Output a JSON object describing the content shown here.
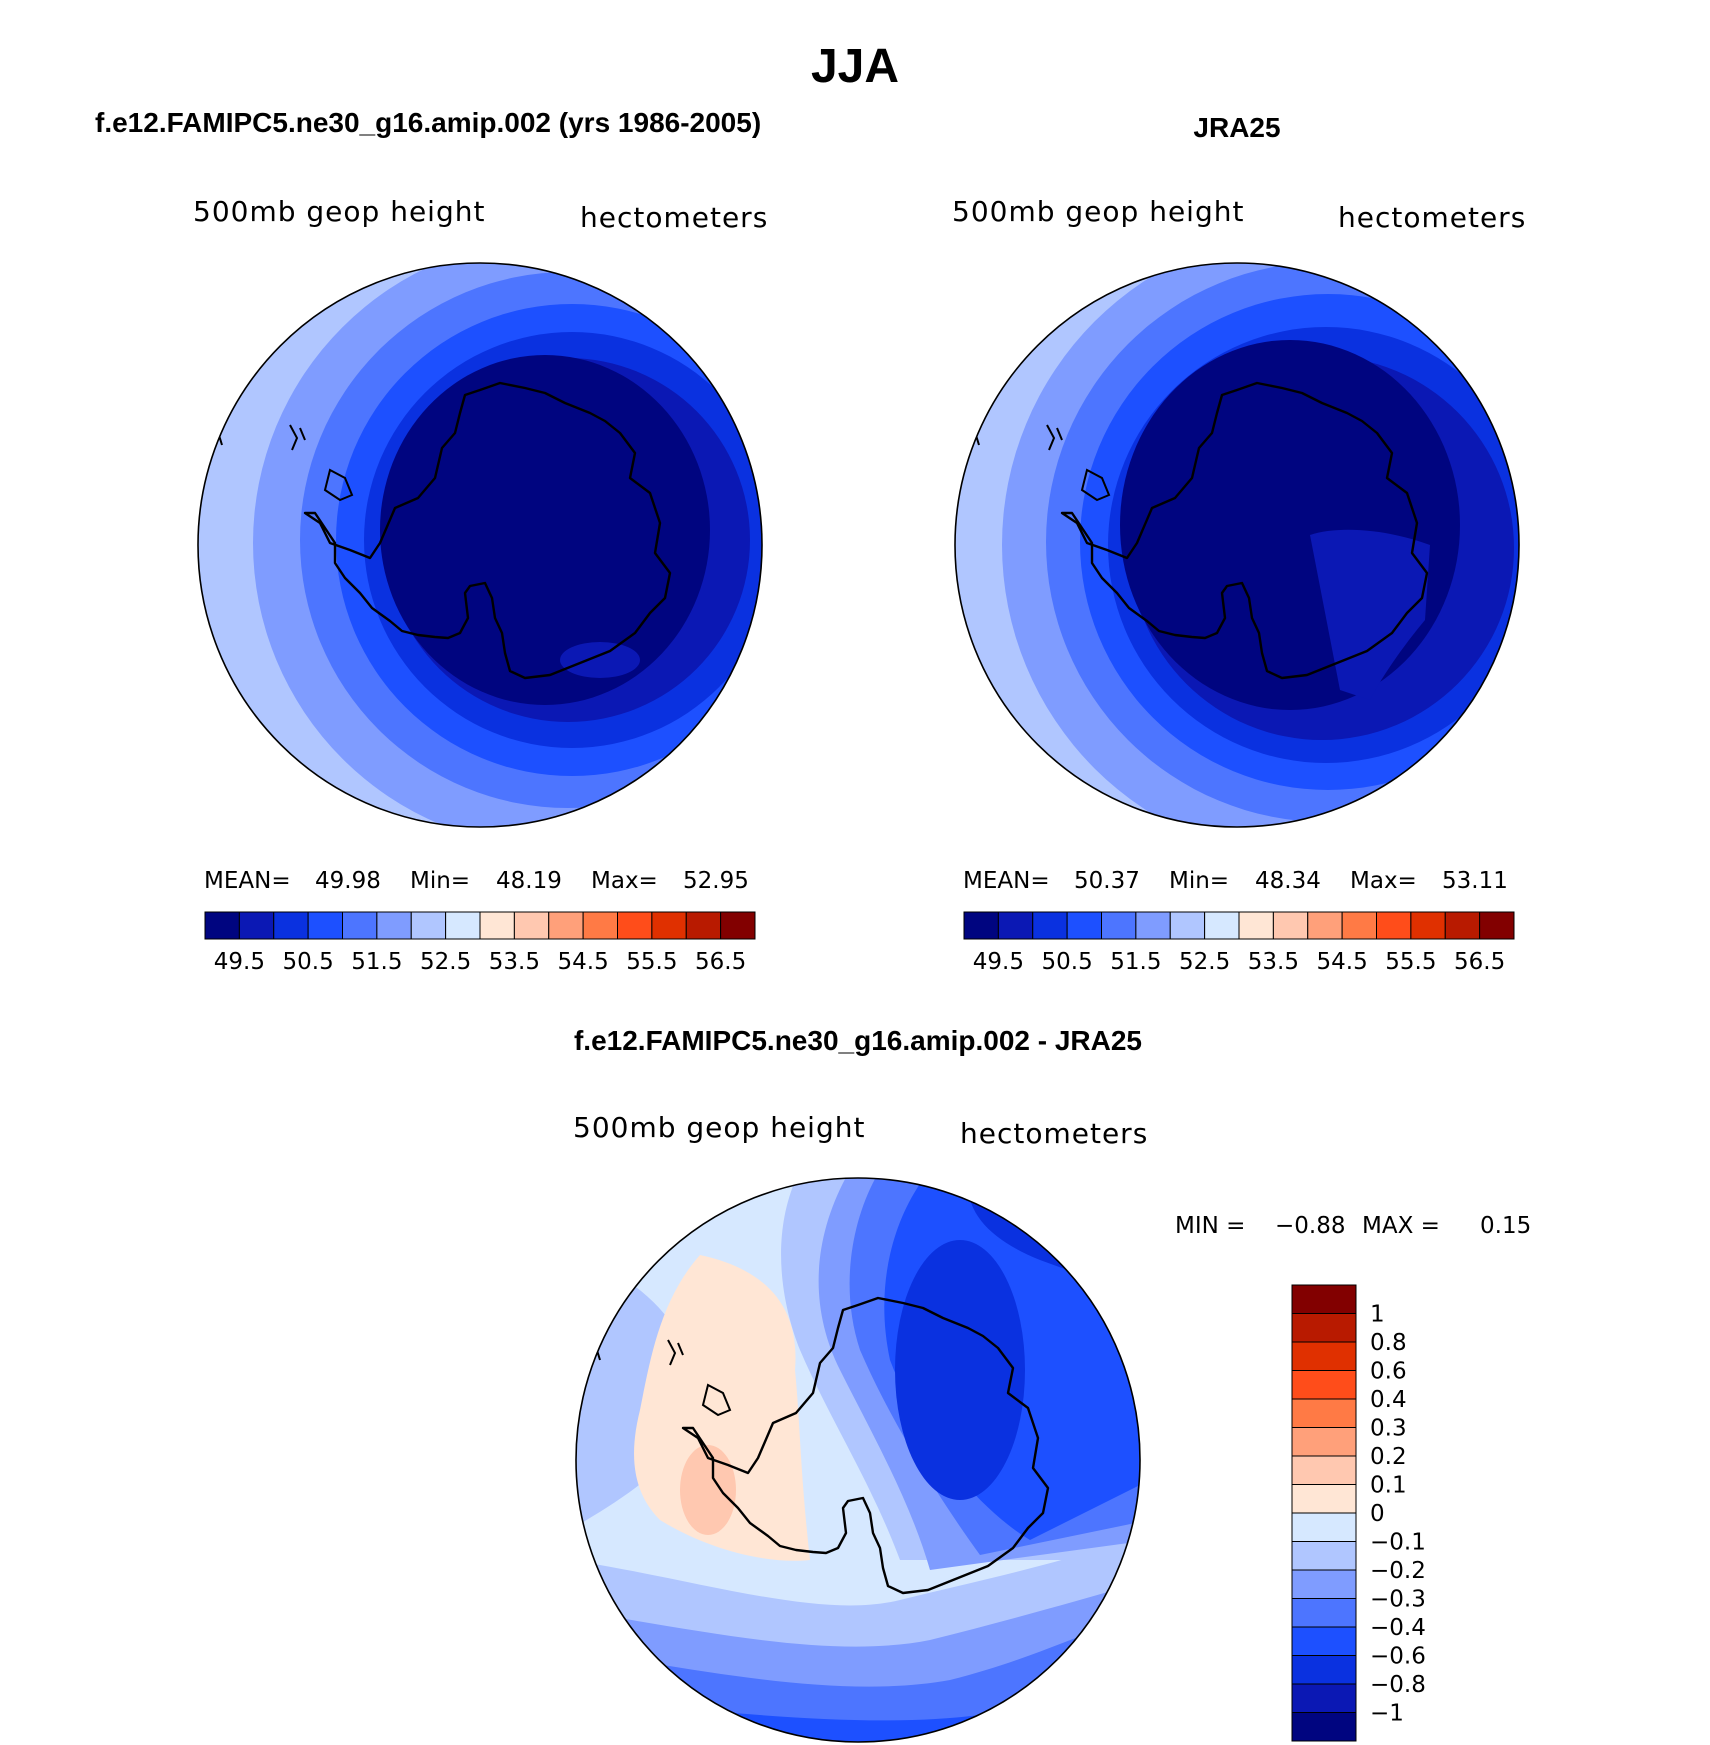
{
  "figure_title": "JJA",
  "panels": [
    {
      "id": "model",
      "title": "f.e12.FAMIPC5.ne30_g16.amip.002 (yrs 1986-2005)",
      "left_label": "500mb geop height",
      "right_label": "hectometers",
      "stats": {
        "mean_label": "MEAN=",
        "mean": "49.98",
        "min_label": "Min=",
        "min": "48.19",
        "max_label": "Max=",
        "max": "52.95"
      }
    },
    {
      "id": "obs",
      "title": "JRA25",
      "left_label": "500mb geop height",
      "right_label": "hectometers",
      "stats": {
        "mean_label": "MEAN=",
        "mean": "50.37",
        "min_label": "Min=",
        "min": "48.34",
        "max_label": "Max=",
        "max": "53.11"
      }
    },
    {
      "id": "diff",
      "title": "f.e12.FAMIPC5.ne30_g16.amip.002 - JRA25",
      "left_label": "500mb geop height",
      "right_label": "hectometers",
      "stats": {
        "min_label": "MIN =",
        "min": "−0.88",
        "max_label": "MAX =",
        "max": "0.15"
      }
    }
  ],
  "colorbar_field": {
    "tick_labels": [
      "49.5",
      "50.5",
      "51.5",
      "52.5",
      "53.5",
      "54.5",
      "55.5",
      "56.5"
    ],
    "colors": [
      "#000580",
      "#0b18b4",
      "#0a31e0",
      "#1d50ff",
      "#4d75ff",
      "#7f9cff",
      "#b0c6ff",
      "#d6e8ff",
      "#ffe6d5",
      "#ffc8b0",
      "#ffa07a",
      "#ff7a45",
      "#ff4d1a",
      "#e03000",
      "#b81a00",
      "#820000"
    ]
  },
  "colorbar_diff": {
    "tick_labels": [
      "1",
      "0.8",
      "0.6",
      "0.4",
      "0.3",
      "0.2",
      "0.1",
      "0",
      "−0.1",
      "−0.2",
      "−0.3",
      "−0.4",
      "−0.6",
      "−0.8",
      "−1"
    ],
    "colors": [
      "#820000",
      "#b81a00",
      "#e03000",
      "#ff4d1a",
      "#ff7a45",
      "#ffa07a",
      "#ffc8b0",
      "#ffe6d5",
      "#d6e8ff",
      "#b0c6ff",
      "#7f9cff",
      "#4d75ff",
      "#1d50ff",
      "#0a31e0",
      "#0b18b4",
      "#000580"
    ]
  }
}
